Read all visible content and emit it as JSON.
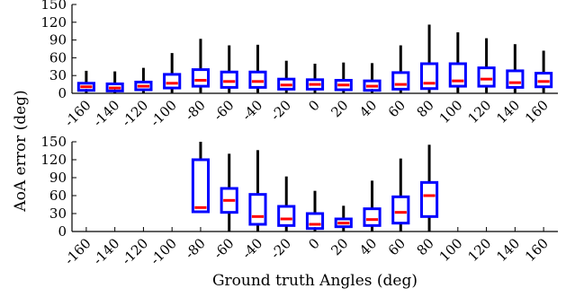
{
  "chart_data": [
    {
      "type": "box",
      "ylabel": "AoA error (deg)",
      "xlabel": "",
      "ylim": [
        0,
        150
      ],
      "yticks": [
        0,
        30,
        60,
        90,
        120,
        150
      ],
      "categories": [
        "-160",
        "-140",
        "-120",
        "-100",
        "-80",
        "-60",
        "-40",
        "-20",
        "0",
        "20",
        "40",
        "60",
        "80",
        "100",
        "120",
        "140",
        "160"
      ],
      "boxes": [
        {
          "x": "-160",
          "whisker_low": 0,
          "q1": 5,
          "median": 11,
          "q3": 17,
          "whisker_high": 38
        },
        {
          "x": "-140",
          "whisker_low": 0,
          "q1": 4,
          "median": 9,
          "q3": 16,
          "whisker_high": 37
        },
        {
          "x": "-120",
          "whisker_low": 0,
          "q1": 6,
          "median": 12,
          "q3": 19,
          "whisker_high": 43
        },
        {
          "x": "-100",
          "whisker_low": 1,
          "q1": 9,
          "median": 17,
          "q3": 32,
          "whisker_high": 68
        },
        {
          "x": "-80",
          "whisker_low": 1,
          "q1": 12,
          "median": 22,
          "q3": 40,
          "whisker_high": 92
        },
        {
          "x": "-60",
          "whisker_low": 1,
          "q1": 10,
          "median": 20,
          "q3": 36,
          "whisker_high": 81
        },
        {
          "x": "-40",
          "whisker_low": 1,
          "q1": 10,
          "median": 20,
          "q3": 36,
          "whisker_high": 82
        },
        {
          "x": "-20",
          "whisker_low": 1,
          "q1": 7,
          "median": 14,
          "q3": 24,
          "whisker_high": 55
        },
        {
          "x": "0",
          "whisker_low": 1,
          "q1": 7,
          "median": 15,
          "q3": 23,
          "whisker_high": 50
        },
        {
          "x": "20",
          "whisker_low": 1,
          "q1": 6,
          "median": 14,
          "q3": 22,
          "whisker_high": 52
        },
        {
          "x": "40",
          "whisker_low": 1,
          "q1": 5,
          "median": 12,
          "q3": 21,
          "whisker_high": 51
        },
        {
          "x": "60",
          "whisker_low": 1,
          "q1": 7,
          "median": 15,
          "q3": 35,
          "whisker_high": 81
        },
        {
          "x": "80",
          "whisker_low": 1,
          "q1": 8,
          "median": 17,
          "q3": 50,
          "whisker_high": 116
        },
        {
          "x": "100",
          "whisker_low": 1,
          "q1": 12,
          "median": 21,
          "q3": 50,
          "whisker_high": 103
        },
        {
          "x": "120",
          "whisker_low": 1,
          "q1": 12,
          "median": 24,
          "q3": 43,
          "whisker_high": 93
        },
        {
          "x": "140",
          "whisker_low": 1,
          "q1": 10,
          "median": 18,
          "q3": 38,
          "whisker_high": 83
        },
        {
          "x": "160",
          "whisker_low": 1,
          "q1": 11,
          "median": 20,
          "q3": 34,
          "whisker_high": 72
        }
      ]
    },
    {
      "type": "box",
      "ylabel": "",
      "xlabel": "Ground truth Angles (deg)",
      "ylim": [
        0,
        150
      ],
      "yticks": [
        0,
        30,
        60,
        90,
        120,
        150
      ],
      "categories": [
        "-160",
        "-140",
        "-120",
        "-100",
        "-80",
        "-60",
        "-40",
        "-20",
        "0",
        "20",
        "40",
        "60",
        "80",
        "100",
        "120",
        "140",
        "160"
      ],
      "boxes": [
        {
          "x": "-80",
          "whisker_low": 33,
          "q1": 33,
          "median": 40,
          "q3": 120,
          "whisker_high": 150
        },
        {
          "x": "-60",
          "whisker_low": 0,
          "q1": 32,
          "median": 52,
          "q3": 72,
          "whisker_high": 130
        },
        {
          "x": "-40",
          "whisker_low": 0,
          "q1": 12,
          "median": 25,
          "q3": 62,
          "whisker_high": 136
        },
        {
          "x": "-20",
          "whisker_low": 0,
          "q1": 10,
          "median": 21,
          "q3": 42,
          "whisker_high": 92
        },
        {
          "x": "0",
          "whisker_low": 0,
          "q1": 5,
          "median": 12,
          "q3": 30,
          "whisker_high": 68
        },
        {
          "x": "20",
          "whisker_low": 0,
          "q1": 8,
          "median": 14,
          "q3": 21,
          "whisker_high": 43
        },
        {
          "x": "40",
          "whisker_low": 0,
          "q1": 10,
          "median": 20,
          "q3": 38,
          "whisker_high": 85
        },
        {
          "x": "60",
          "whisker_low": 0,
          "q1": 14,
          "median": 32,
          "q3": 58,
          "whisker_high": 122
        },
        {
          "x": "80",
          "whisker_low": 0,
          "q1": 25,
          "median": 60,
          "q3": 82,
          "whisker_high": 145
        }
      ]
    }
  ],
  "colors": {
    "box": "#0000ff",
    "median": "#ff0000",
    "whisker": "#000000",
    "axis": "#000000"
  }
}
